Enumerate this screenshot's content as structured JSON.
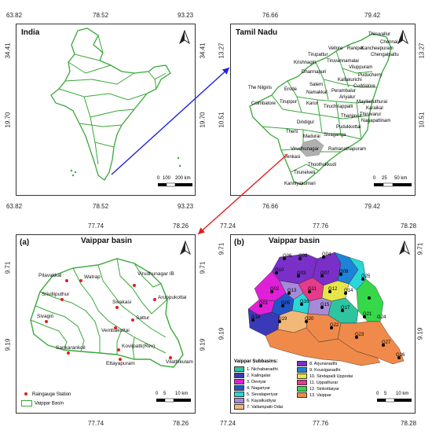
{
  "panels": {
    "india": {
      "title": "India",
      "x_ticks": [
        "63.82",
        "78.52",
        "93.23"
      ],
      "y_ticks": [
        "34.41",
        "19.70"
      ],
      "scale": [
        "0",
        "100",
        "200 km"
      ]
    },
    "tamil_nadu": {
      "title": "Tamil Nadu",
      "x_ticks": [
        "76.66",
        "79.42"
      ],
      "y_ticks": [
        "13.27",
        "10.51"
      ],
      "scale": [
        "0",
        "25",
        "50 km"
      ],
      "districts": [
        "Thiruvallur",
        "Chennai",
        "Kancheepuram",
        "Chengalpattu",
        "Tirupattur",
        "Vellore",
        "Ranipet",
        "Krishnagiri",
        "Tiruvannamalai",
        "Viluppuram",
        "Dharmapuri",
        "Kallakurichi",
        "Puducherry",
        "Salem",
        "Cuddalore",
        "The Nilgiris",
        "Erode",
        "Namakkal",
        "Perambalur",
        "Ariyalur",
        "Coimbatore",
        "Tiruppur",
        "Karur",
        "Tiruchirappalli",
        "Mayiladuthurai",
        "Karaikal",
        "Thanjavur",
        "Thiruvarur",
        "Nagapattinam",
        "Dindigul",
        "Pudukkottai",
        "Theni",
        "Madurai",
        "Sivaganga",
        "Virudhunagar",
        "Tenkasi",
        "Ramanathapuram",
        "Thoothukkudi",
        "Tirunelveli",
        "Kanniyakumari"
      ]
    },
    "vaippar_a": {
      "title": "Vaippar basin",
      "panel_label": "(a)",
      "x_ticks": [
        "77.74",
        "78.26"
      ],
      "y_ticks": [
        "9.71",
        "9.19"
      ],
      "stations": [
        "Pilavakkal",
        "Watrap",
        "Virudhunagar IB",
        "Srivilliputhur",
        "Aruppukottai",
        "Sivakasi",
        "Sivagiri",
        "Sattur",
        "Vembakottai",
        "Sankarankoil",
        "Kovilpatti(Rev)",
        "Ettayapuram",
        "Vilathikulam"
      ],
      "legend": [
        "Raingauge Station",
        "Vaippar Basin"
      ],
      "scale": [
        "0",
        "5",
        "10 km"
      ]
    },
    "vaippar_b": {
      "title": "Vaippar basin",
      "panel_label": "(b)",
      "x_ticks": [
        "77.24",
        "77.76",
        "78.28"
      ],
      "y_ticks": [
        "9.71",
        "9.19"
      ],
      "legend_title": "Vaippar Subbasins:",
      "legend_items": [
        {
          "label": "1. Nichabanadhi",
          "color": "#2ec4a0"
        },
        {
          "label": "2. Kalingalar",
          "color": "#3a3ab8"
        },
        {
          "label": "3. Deviyar",
          "color": "#e020d8"
        },
        {
          "label": "4. Nagariyar",
          "color": "#1f55c8"
        },
        {
          "label": "5. Sevalaperiyar",
          "color": "#2ad6d6"
        },
        {
          "label": "6. Kayalkudiyar",
          "color": "#a68ad8"
        },
        {
          "label": "7. Vallampatti Odai",
          "color": "#f2b878"
        },
        {
          "label": "8. Arjunanadhi",
          "color": "#7a2fc8"
        },
        {
          "label": "9. Kousiganadhi",
          "color": "#1e82d8"
        },
        {
          "label": "10. Sindapalli Uppodai",
          "color": "#e6e64a"
        },
        {
          "label": "11. Uppathurar",
          "color": "#e63a8a"
        },
        {
          "label": "12. Sinkottaiyar",
          "color": "#36d84a"
        },
        {
          "label": "13. Vaippar",
          "color": "#f08a4a"
        }
      ],
      "scale": [
        "0",
        "5",
        "10 km"
      ],
      "gauges": [
        "G06",
        "G09",
        "G04",
        "G10",
        "G03",
        "G07",
        "G08",
        "G13",
        "G11",
        "G02",
        "G12",
        "G01",
        "G14",
        "G05",
        "G15",
        "G16",
        "G17",
        "G18",
        "G19",
        "G20",
        "G21",
        "G22",
        "G23",
        "G24",
        "G25",
        "G26",
        "G27"
      ]
    }
  },
  "colors": {
    "boundary": "#3aa83a",
    "arrow_blue": "#2020e0",
    "arrow_red": "#e02020",
    "station": "#e02020"
  }
}
